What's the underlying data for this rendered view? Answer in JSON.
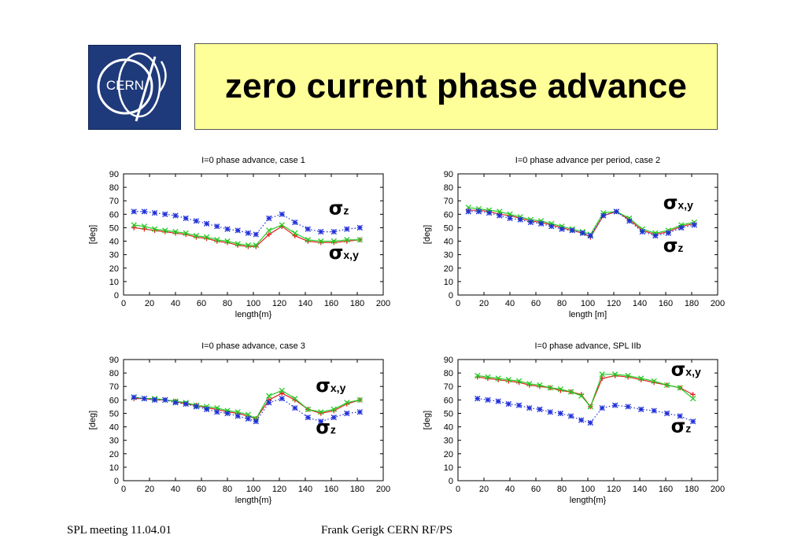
{
  "slide": {
    "title": "zero current phase advance",
    "logo_text": "CERN",
    "footer_left": "SPL meeting 11.04.01",
    "footer_center": "Frank Gerigk CERN RF/PS"
  },
  "colors": {
    "red": "#e02020",
    "green": "#22cc22",
    "blue": "#2030d8",
    "title_bg": "#ffff99",
    "logo_bg": "#1f3a7a"
  },
  "chart_data": [
    {
      "type": "line",
      "title": "I=0 phase advance, case 1",
      "xlabel": "length{m}",
      "ylabel": "[deg]",
      "xlim": [
        0,
        200
      ],
      "ylim": [
        0,
        90
      ],
      "xticks": [
        0,
        20,
        40,
        60,
        80,
        100,
        120,
        140,
        160,
        180,
        200
      ],
      "yticks": [
        0,
        10,
        20,
        30,
        40,
        50,
        60,
        70,
        80,
        90
      ],
      "annotations": [
        {
          "sym": "σ",
          "sub": "z",
          "x": 158,
          "y": 60
        },
        {
          "sym": "σ",
          "sub": "x,y",
          "x": 158,
          "y": 27
        }
      ],
      "series": [
        {
          "color": "red",
          "marker": "plus",
          "dotted": false,
          "x": [
            8,
            16,
            24,
            32,
            40,
            48,
            56,
            64,
            72,
            80,
            88,
            96,
            102,
            112,
            122,
            132,
            142,
            152,
            162,
            172,
            182
          ],
          "y": [
            50,
            49,
            48,
            47,
            46,
            45,
            43,
            42,
            40,
            39,
            37,
            36,
            36,
            45,
            51,
            44,
            40,
            39,
            39,
            40,
            41
          ]
        },
        {
          "color": "green",
          "marker": "x",
          "dotted": false,
          "x": [
            8,
            16,
            24,
            32,
            40,
            48,
            56,
            64,
            72,
            80,
            88,
            96,
            102,
            112,
            122,
            132,
            142,
            152,
            162,
            172,
            182
          ],
          "y": [
            52,
            51,
            49,
            48,
            47,
            46,
            44,
            43,
            41,
            40,
            38,
            37,
            37,
            48,
            52,
            46,
            41,
            40,
            40,
            41,
            41
          ]
        },
        {
          "color": "blue",
          "marker": "star",
          "dotted": true,
          "x": [
            8,
            16,
            24,
            32,
            40,
            48,
            56,
            64,
            72,
            80,
            88,
            96,
            102,
            112,
            122,
            132,
            142,
            152,
            162,
            172,
            182
          ],
          "y": [
            62,
            62,
            61,
            60,
            59,
            57,
            55,
            53,
            51,
            49,
            48,
            46,
            45,
            57,
            60,
            54,
            49,
            47,
            47,
            49,
            50
          ]
        }
      ]
    },
    {
      "type": "line",
      "title": "I=0 phase advance per period, case 2",
      "xlabel": "length [m]",
      "ylabel": "[deg]",
      "xlim": [
        0,
        200
      ],
      "ylim": [
        0,
        90
      ],
      "xticks": [
        0,
        20,
        40,
        60,
        80,
        100,
        120,
        140,
        160,
        180,
        200
      ],
      "yticks": [
        0,
        10,
        20,
        30,
        40,
        50,
        60,
        70,
        80,
        90
      ],
      "annotations": [
        {
          "sym": "σ",
          "sub": "x,y",
          "x": 158,
          "y": 64
        },
        {
          "sym": "σ",
          "sub": "z",
          "x": 158,
          "y": 32
        }
      ],
      "series": [
        {
          "color": "red",
          "marker": "plus",
          "dotted": false,
          "x": [
            8,
            16,
            24,
            32,
            40,
            48,
            56,
            64,
            72,
            80,
            88,
            96,
            102,
            112,
            122,
            132,
            142,
            152,
            162,
            172,
            182
          ],
          "y": [
            63,
            63,
            62,
            60,
            59,
            57,
            55,
            54,
            52,
            50,
            48,
            46,
            43,
            59,
            62,
            56,
            48,
            45,
            47,
            51,
            53
          ]
        },
        {
          "color": "green",
          "marker": "x",
          "dotted": false,
          "x": [
            8,
            16,
            24,
            32,
            40,
            48,
            56,
            64,
            72,
            80,
            88,
            96,
            102,
            112,
            122,
            132,
            142,
            152,
            162,
            172,
            182
          ],
          "y": [
            65,
            64,
            63,
            62,
            60,
            58,
            56,
            55,
            53,
            51,
            49,
            47,
            45,
            61,
            62,
            57,
            49,
            46,
            48,
            52,
            54
          ]
        },
        {
          "color": "blue",
          "marker": "star",
          "dotted": true,
          "x": [
            8,
            16,
            24,
            32,
            40,
            48,
            56,
            64,
            72,
            80,
            88,
            96,
            102,
            112,
            122,
            132,
            142,
            152,
            162,
            172,
            182
          ],
          "y": [
            62,
            62,
            61,
            59,
            57,
            56,
            54,
            53,
            51,
            49,
            48,
            46,
            44,
            59,
            62,
            55,
            47,
            44,
            46,
            50,
            52
          ]
        }
      ]
    },
    {
      "type": "line",
      "title": "I=0 phase advance, case 3",
      "xlabel": "length{m}",
      "ylabel": "[deg]",
      "xlim": [
        0,
        200
      ],
      "ylim": [
        0,
        90
      ],
      "xticks": [
        0,
        20,
        40,
        60,
        80,
        100,
        120,
        140,
        160,
        180,
        200
      ],
      "yticks": [
        0,
        10,
        20,
        30,
        40,
        50,
        60,
        70,
        80,
        90
      ],
      "annotations": [
        {
          "sym": "σ",
          "sub": "x,y",
          "x": 148,
          "y": 66
        },
        {
          "sym": "σ",
          "sub": "z",
          "x": 148,
          "y": 35
        }
      ],
      "series": [
        {
          "color": "red",
          "marker": "plus",
          "dotted": false,
          "x": [
            8,
            16,
            24,
            32,
            40,
            48,
            56,
            64,
            72,
            80,
            88,
            96,
            102,
            112,
            122,
            132,
            142,
            152,
            162,
            172,
            182
          ],
          "y": [
            61,
            61,
            60,
            60,
            59,
            57,
            56,
            54,
            53,
            51,
            50,
            48,
            46,
            60,
            65,
            60,
            53,
            50,
            52,
            57,
            60
          ]
        },
        {
          "color": "green",
          "marker": "x",
          "dotted": false,
          "x": [
            8,
            16,
            24,
            32,
            40,
            48,
            56,
            64,
            72,
            80,
            88,
            96,
            102,
            112,
            122,
            132,
            142,
            152,
            162,
            172,
            182
          ],
          "y": [
            62,
            61,
            61,
            60,
            59,
            58,
            56,
            55,
            54,
            52,
            51,
            49,
            46,
            63,
            67,
            61,
            53,
            51,
            53,
            58,
            60
          ]
        },
        {
          "color": "blue",
          "marker": "star",
          "dotted": true,
          "x": [
            8,
            16,
            24,
            32,
            40,
            48,
            56,
            64,
            72,
            80,
            88,
            96,
            102,
            112,
            122,
            132,
            142,
            152,
            162,
            172,
            182
          ],
          "y": [
            62,
            61,
            60,
            60,
            58,
            57,
            55,
            53,
            51,
            50,
            48,
            46,
            44,
            58,
            61,
            54,
            47,
            44,
            47,
            50,
            51
          ]
        }
      ]
    },
    {
      "type": "line",
      "title": "I=0 phase advance, SPL IIb",
      "xlabel": "length{m}",
      "ylabel": "[deg]",
      "xlim": [
        0,
        200
      ],
      "ylim": [
        0,
        90
      ],
      "xticks": [
        0,
        20,
        40,
        60,
        80,
        100,
        120,
        140,
        160,
        180,
        200
      ],
      "yticks": [
        0,
        10,
        20,
        30,
        40,
        50,
        60,
        70,
        80,
        90
      ],
      "annotations": [
        {
          "sym": "σ",
          "sub": "x,y",
          "x": 164,
          "y": 78
        },
        {
          "sym": "σ",
          "sub": "z",
          "x": 164,
          "y": 36
        }
      ],
      "series": [
        {
          "color": "red",
          "marker": "plus",
          "dotted": false,
          "x": [
            15,
            23,
            31,
            39,
            47,
            55,
            63,
            71,
            79,
            87,
            95,
            102,
            111,
            121,
            131,
            141,
            151,
            161,
            171,
            181
          ],
          "y": [
            77,
            76,
            75,
            74,
            73,
            71,
            70,
            69,
            67,
            66,
            64,
            55,
            76,
            78,
            77,
            75,
            73,
            71,
            69,
            64
          ]
        },
        {
          "color": "green",
          "marker": "x",
          "dotted": false,
          "x": [
            15,
            23,
            31,
            39,
            47,
            55,
            63,
            71,
            79,
            87,
            95,
            102,
            111,
            121,
            131,
            141,
            151,
            161,
            171,
            181
          ],
          "y": [
            78,
            77,
            76,
            75,
            74,
            72,
            71,
            69,
            68,
            66,
            63,
            55,
            79,
            79,
            78,
            76,
            74,
            71,
            69,
            61
          ]
        },
        {
          "color": "blue",
          "marker": "star",
          "dotted": true,
          "x": [
            15,
            23,
            31,
            39,
            47,
            55,
            63,
            71,
            79,
            87,
            95,
            102,
            111,
            121,
            131,
            141,
            151,
            161,
            171,
            181
          ],
          "y": [
            61,
            60,
            59,
            57,
            56,
            54,
            53,
            51,
            50,
            48,
            45,
            43,
            54,
            56,
            55,
            53,
            52,
            50,
            48,
            44
          ]
        }
      ]
    }
  ]
}
